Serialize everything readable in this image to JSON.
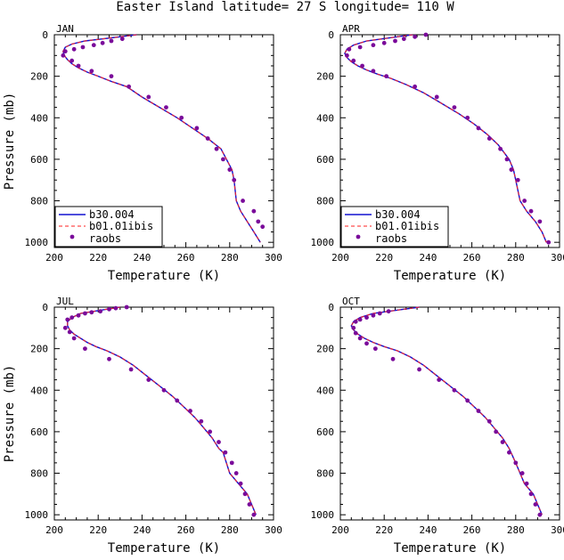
{
  "title": "Easter Island  latitude= 27 S longitude= 110 W",
  "colors": {
    "model1": "#1010d0",
    "model2": "#ff2020",
    "raobs": "#7a0a9a",
    "axis": "#000000"
  },
  "chart_data": [
    {
      "type": "scatter",
      "panel": "JAN",
      "xlabel": "Temperature (K)",
      "ylabel": "Pressure (mb)",
      "xlim": [
        200,
        300
      ],
      "ylim": [
        1025,
        0
      ],
      "y_inverted": true,
      "xticks": [
        200,
        220,
        240,
        260,
        280,
        300
      ],
      "yticks": [
        0,
        200,
        400,
        600,
        800,
        1000
      ],
      "legend": [
        "b30.004",
        "b01.01ibis",
        "raobs"
      ],
      "series": [
        {
          "name": "b30.004",
          "style": "solid-line",
          "x": [
            237.5,
            230,
            222,
            214,
            208,
            205,
            204,
            204.5,
            206,
            208,
            211,
            215,
            220,
            226,
            233,
            240,
            248,
            256,
            263,
            270,
            276,
            281,
            282,
            283,
            285,
            288,
            291,
            294
          ],
          "y": [
            0,
            10,
            20,
            30,
            45,
            60,
            80,
            100,
            120,
            140,
            160,
            180,
            200,
            225,
            250,
            300,
            350,
            400,
            450,
            500,
            550,
            650,
            700,
            800,
            850,
            900,
            950,
            1000
          ]
        },
        {
          "name": "b01.01ibis",
          "style": "dashed-line",
          "x": [
            237.5,
            230,
            222,
            214,
            208,
            205,
            204,
            204.5,
            206,
            208,
            211,
            215,
            220,
            226,
            233,
            240,
            248,
            256,
            263,
            270,
            276,
            281,
            282,
            283,
            285,
            288,
            291,
            294
          ],
          "y": [
            0,
            10,
            20,
            30,
            45,
            60,
            80,
            100,
            120,
            140,
            160,
            180,
            200,
            225,
            250,
            300,
            350,
            400,
            450,
            500,
            550,
            650,
            700,
            800,
            850,
            900,
            950,
            1000
          ]
        },
        {
          "name": "raobs",
          "style": "points",
          "x": [
            231,
            226,
            222,
            218,
            213,
            209,
            205,
            204,
            208,
            211,
            217,
            226,
            234,
            243,
            251,
            258,
            265,
            270,
            274,
            277,
            280,
            282,
            286,
            291,
            293,
            295
          ],
          "y": [
            20,
            30,
            40,
            50,
            60,
            70,
            80,
            100,
            125,
            150,
            175,
            200,
            250,
            300,
            350,
            400,
            450,
            500,
            550,
            600,
            650,
            700,
            800,
            850,
            900,
            925
          ]
        }
      ]
    },
    {
      "type": "scatter",
      "panel": "APR",
      "xlabel": "Temperature (K)",
      "ylabel": "",
      "xlim": [
        200,
        300
      ],
      "ylim": [
        1025,
        0
      ],
      "y_inverted": true,
      "xticks": [
        200,
        220,
        240,
        260,
        280,
        300
      ],
      "yticks": [
        0,
        200,
        400,
        600,
        800,
        1000
      ],
      "legend": [
        "b30.004",
        "b01.01ibis",
        "raobs"
      ],
      "series": [
        {
          "name": "b30.004",
          "style": "solid-line",
          "x": [
            233,
            226,
            219,
            212,
            206,
            203,
            202,
            203,
            205,
            208,
            212,
            217,
            223,
            230,
            238,
            246,
            254,
            261,
            267,
            272,
            277,
            279,
            280,
            282,
            285,
            289,
            292,
            294
          ],
          "y": [
            0,
            10,
            20,
            30,
            50,
            70,
            90,
            110,
            130,
            150,
            170,
            190,
            210,
            240,
            280,
            330,
            380,
            430,
            480,
            530,
            600,
            650,
            700,
            800,
            850,
            900,
            950,
            1000
          ]
        },
        {
          "name": "b01.01ibis",
          "style": "dashed-line",
          "x": [
            233,
            226,
            219,
            212,
            206,
            203,
            202,
            203,
            205,
            208,
            212,
            217,
            223,
            230,
            238,
            246,
            254,
            261,
            267,
            272,
            277,
            279,
            280,
            282,
            285,
            289,
            292,
            294
          ],
          "y": [
            0,
            10,
            20,
            30,
            50,
            70,
            90,
            110,
            130,
            150,
            170,
            190,
            210,
            240,
            280,
            330,
            380,
            430,
            480,
            530,
            600,
            650,
            700,
            800,
            850,
            900,
            950,
            1000
          ]
        },
        {
          "name": "raobs",
          "style": "points",
          "x": [
            239,
            234,
            229,
            225,
            220,
            215,
            209,
            204,
            203,
            206,
            210,
            215,
            221,
            234,
            244,
            252,
            258,
            263,
            268,
            273,
            276,
            278,
            281,
            284,
            287,
            291,
            295
          ],
          "y": [
            0,
            10,
            20,
            30,
            40,
            50,
            60,
            70,
            100,
            125,
            150,
            175,
            200,
            250,
            300,
            350,
            400,
            450,
            500,
            550,
            600,
            650,
            700,
            800,
            850,
            900,
            1000
          ]
        }
      ]
    },
    {
      "type": "scatter",
      "panel": "JUL",
      "xlabel": "Temperature (K)",
      "ylabel": "Pressure (mb)",
      "xlim": [
        200,
        300
      ],
      "ylim": [
        1025,
        0
      ],
      "y_inverted": true,
      "xticks": [
        200,
        220,
        240,
        260,
        280,
        300
      ],
      "yticks": [
        0,
        200,
        400,
        600,
        800,
        1000
      ],
      "legend": [],
      "series": [
        {
          "name": "b30.004",
          "style": "solid-line",
          "x": [
            230,
            224,
            218,
            212,
            208,
            206,
            206,
            207,
            209,
            212,
            215,
            219,
            224,
            230,
            236,
            242,
            248,
            254,
            259,
            264,
            268,
            272,
            275,
            277,
            280,
            284,
            288,
            292
          ],
          "y": [
            0,
            10,
            20,
            30,
            50,
            70,
            90,
            110,
            130,
            150,
            170,
            190,
            210,
            240,
            280,
            330,
            380,
            430,
            480,
            530,
            580,
            630,
            680,
            700,
            800,
            850,
            900,
            1000
          ]
        },
        {
          "name": "b01.01ibis",
          "style": "dashed-line",
          "x": [
            230,
            224,
            218,
            212,
            208,
            206,
            206,
            207,
            209,
            212,
            215,
            219,
            224,
            230,
            236,
            242,
            248,
            254,
            259,
            264,
            268,
            272,
            275,
            277,
            280,
            284,
            288,
            292
          ],
          "y": [
            0,
            10,
            20,
            30,
            50,
            70,
            90,
            110,
            130,
            150,
            170,
            190,
            210,
            240,
            280,
            330,
            380,
            430,
            480,
            530,
            580,
            630,
            680,
            700,
            800,
            850,
            900,
            1000
          ]
        },
        {
          "name": "raobs",
          "style": "points",
          "x": [
            233,
            228,
            225,
            221,
            217,
            214,
            211,
            208,
            206,
            205,
            207,
            209,
            214,
            225,
            235,
            243,
            250,
            256,
            262,
            267,
            271,
            275,
            278,
            281,
            283,
            285,
            287,
            289,
            291
          ],
          "y": [
            0,
            5,
            10,
            20,
            25,
            30,
            40,
            50,
            60,
            100,
            120,
            150,
            200,
            250,
            300,
            350,
            400,
            450,
            500,
            550,
            600,
            650,
            700,
            750,
            800,
            850,
            900,
            950,
            1000
          ]
        }
      ]
    },
    {
      "type": "scatter",
      "panel": "OCT",
      "xlabel": "Temperature (K)",
      "ylabel": "",
      "xlim": [
        200,
        300
      ],
      "ylim": [
        1025,
        0
      ],
      "y_inverted": true,
      "xticks": [
        200,
        220,
        240,
        260,
        280,
        300
      ],
      "yticks": [
        0,
        200,
        400,
        600,
        800,
        1000
      ],
      "legend": [],
      "series": [
        {
          "name": "b30.004",
          "style": "solid-line",
          "x": [
            236,
            229,
            222,
            215,
            209,
            206,
            205,
            206,
            208,
            211,
            215,
            220,
            226,
            232,
            238,
            244,
            250,
            256,
            261,
            266,
            270,
            274,
            277,
            280,
            284,
            288,
            292
          ],
          "y": [
            0,
            10,
            20,
            30,
            50,
            70,
            90,
            110,
            130,
            150,
            170,
            190,
            210,
            240,
            280,
            330,
            380,
            430,
            480,
            530,
            580,
            630,
            680,
            750,
            850,
            900,
            1000
          ]
        },
        {
          "name": "b01.01ibis",
          "style": "dashed-line",
          "x": [
            236,
            229,
            222,
            215,
            209,
            206,
            205,
            206,
            208,
            211,
            215,
            220,
            226,
            232,
            238,
            244,
            250,
            256,
            261,
            266,
            270,
            274,
            277,
            280,
            284,
            288,
            292
          ],
          "y": [
            0,
            10,
            20,
            30,
            50,
            70,
            90,
            110,
            130,
            150,
            170,
            190,
            210,
            240,
            280,
            330,
            380,
            430,
            480,
            530,
            580,
            630,
            680,
            750,
            850,
            900,
            1000
          ]
        },
        {
          "name": "raobs",
          "style": "points",
          "x": [
            222,
            218,
            215,
            212,
            209,
            207,
            206,
            207,
            209,
            212,
            216,
            224,
            236,
            245,
            252,
            258,
            263,
            268,
            271,
            274,
            277,
            280,
            283,
            285,
            287,
            289,
            291
          ],
          "y": [
            20,
            30,
            40,
            50,
            60,
            70,
            100,
            125,
            150,
            175,
            200,
            250,
            300,
            350,
            400,
            450,
            500,
            550,
            600,
            650,
            700,
            750,
            800,
            850,
            900,
            950,
            1000
          ]
        }
      ]
    }
  ]
}
